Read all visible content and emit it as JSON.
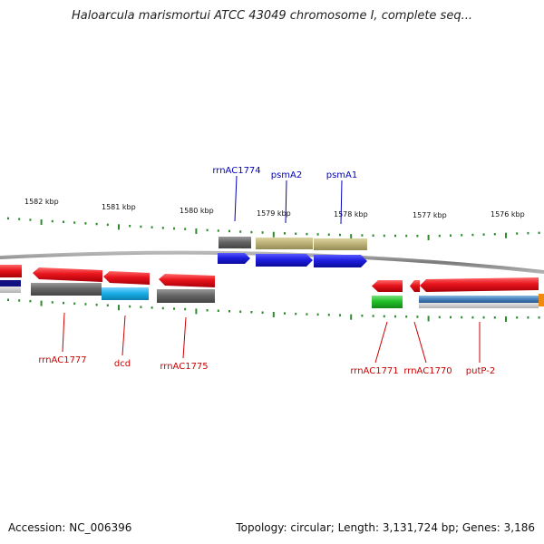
{
  "title": "Haloarcula marismortui ATCC 43049 chromosome I, complete seq...",
  "footer": {
    "accession": "Accession: NC_006396",
    "topology": "Topology: circular; Length: 3,131,724 bp; Genes: 3,186"
  },
  "colors": {
    "backbone": "#8c8c8c",
    "tick": "#2e8b2e",
    "label_red": "#cc0000",
    "label_blue": "#0000bb",
    "red": "#e8141c",
    "blue": "#1e1ee0",
    "gray": "#666666",
    "olive": "#bdb37a",
    "cyan": "#1ab0e8",
    "green": "#22c02a",
    "steel": "#4a86c0",
    "navy": "#101080",
    "orange": "#f08a10"
  },
  "kbp_labels": [
    "1582 kbp",
    "1581 kbp",
    "1580 kbp",
    "1579 kbp",
    "1578 kbp",
    "1577 kbp",
    "1576 kbp"
  ],
  "gene_labels": {
    "rrnAC1774": "rrnAC1774",
    "psmA2": "psmA2",
    "psmA1": "psmA1",
    "rrnAC1777": "rrnAC1777",
    "dcd": "dcd",
    "rrnAC1775": "rrnAC1775",
    "rrnAC1771": "rrnAC1771",
    "rrnAC1770": "rrnAC1770",
    "putP_2": "putP-2"
  }
}
